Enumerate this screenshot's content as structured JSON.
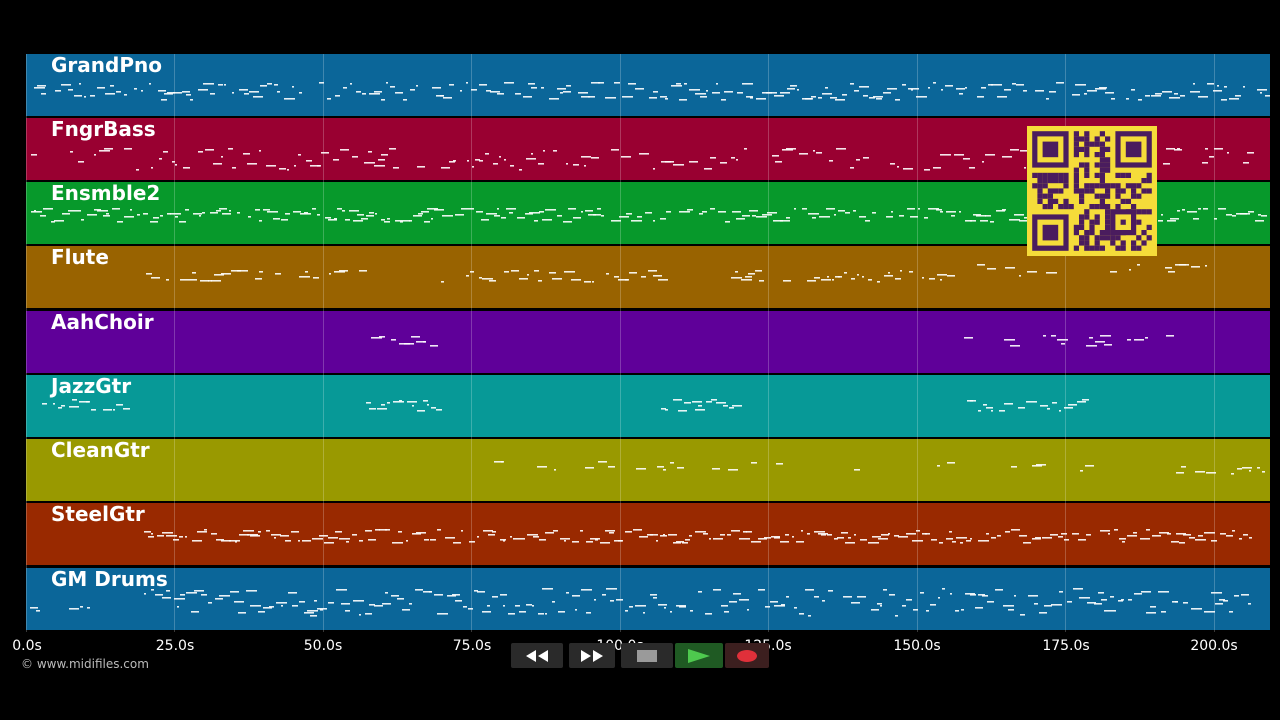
{
  "tracks": [
    {
      "name": "GrandPno",
      "color": "#0b6699"
    },
    {
      "name": "FngrBass",
      "color": "#990031"
    },
    {
      "name": "Ensmble2",
      "color": "#07992b"
    },
    {
      "name": "Flute",
      "color": "#996300"
    },
    {
      "name": "AahChoir",
      "color": "#5f0099"
    },
    {
      "name": "JazzGtr",
      "color": "#079997"
    },
    {
      "name": "CleanGtr",
      "color": "#999900"
    },
    {
      "name": "SteelGtr",
      "color": "#992900"
    },
    {
      "name": "GM Drums",
      "color": "#0b6699"
    }
  ],
  "time_axis": {
    "labels": [
      "0.0s",
      "25.0s",
      "50.0s",
      "75.0s",
      "100.0s",
      "125.0s",
      "150.0s",
      "175.0s",
      "200.0s"
    ]
  },
  "transport": {
    "rewind_icon": "rewind-icon",
    "fast_forward_icon": "fast-forward-icon",
    "stop_icon": "stop-icon",
    "play_icon": "play-icon",
    "record_icon": "record-icon",
    "play_color": "#4ec94e",
    "record_color": "#e0303a"
  },
  "copyright": "© www.midifiles.com",
  "qr_code": {
    "color_fg": "#4a1c5e",
    "color_bg": "#f5dc3a"
  }
}
